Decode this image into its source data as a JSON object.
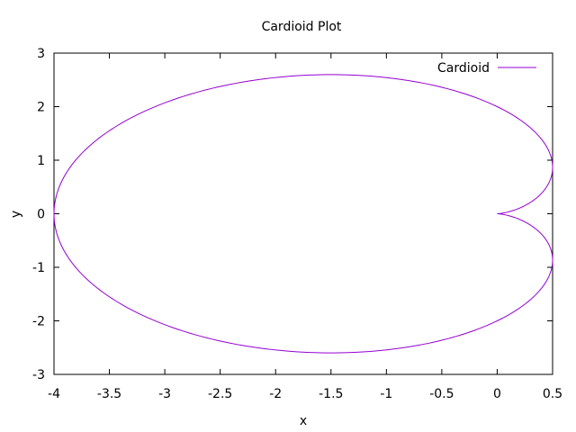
{
  "chart_data": {
    "type": "line",
    "title": "Cardioid Plot",
    "xlabel": "x",
    "ylabel": "y",
    "xlim": [
      -4,
      0.5
    ],
    "ylim": [
      -3,
      3
    ],
    "xticks": [
      -4,
      -3.5,
      -3,
      -2.5,
      -2,
      -1.5,
      -1,
      -0.5,
      0,
      0.5
    ],
    "xtick_labels": [
      "-4",
      "-3.5",
      "-3",
      "-2.5",
      "-2",
      "-1.5",
      "-1",
      "-0.5",
      "0",
      "0.5"
    ],
    "yticks": [
      -3,
      -2,
      -1,
      0,
      1,
      2,
      3
    ],
    "ytick_labels": [
      "-3",
      "-2",
      "-1",
      "0",
      "1",
      "2",
      "3"
    ],
    "grid": false,
    "legend_position": "top-right",
    "series": [
      {
        "name": "Cardioid",
        "color": "#9400d3",
        "equation": "x = 2cos(t) - cos(2t) - 1, y = 2sin(t) - sin(2t), t in [0, 2pi]",
        "samples": 400
      }
    ]
  }
}
